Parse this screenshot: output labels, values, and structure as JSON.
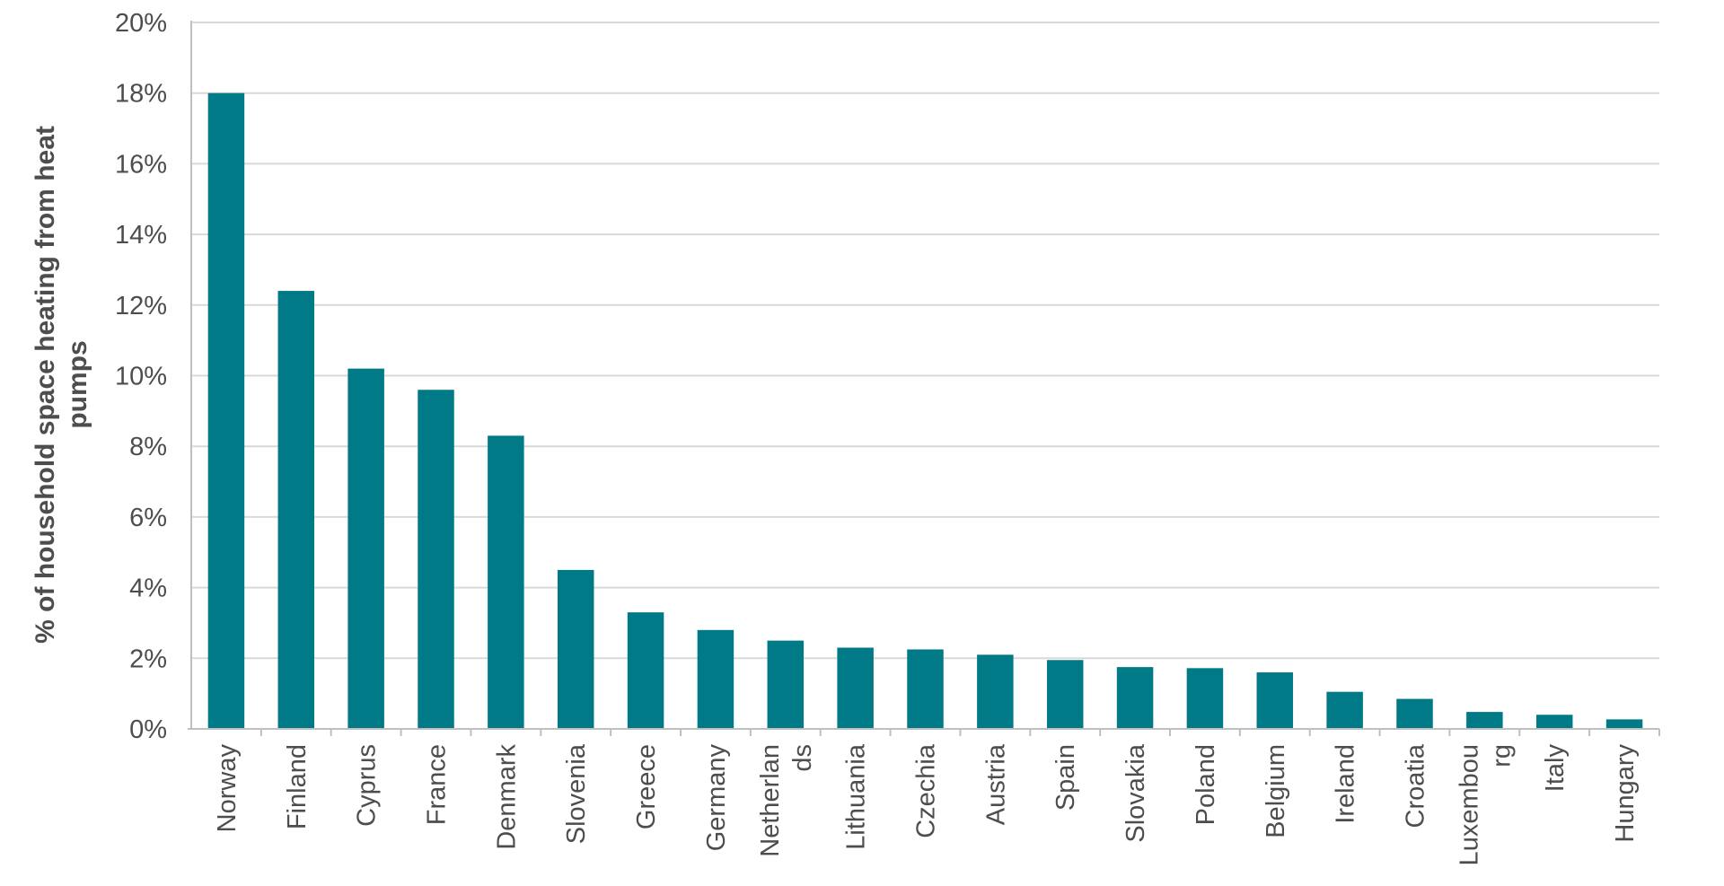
{
  "chart_data": {
    "type": "bar",
    "title": "",
    "xlabel": "",
    "ylabel": [
      "% of household space heating from  heat",
      "pumps"
    ],
    "ylim": [
      0,
      20
    ],
    "y_ticks": [
      "0%",
      "2%",
      "4%",
      "6%",
      "8%",
      "10%",
      "12%",
      "14%",
      "16%",
      "18%",
      "20%"
    ],
    "grid": true,
    "legend": "none",
    "bar_color": "#007A87",
    "categories": [
      [
        "Norway"
      ],
      [
        "Finland"
      ],
      [
        "Cyprus"
      ],
      [
        "France"
      ],
      [
        "Denmark"
      ],
      [
        "Slovenia"
      ],
      [
        "Greece"
      ],
      [
        "Germany"
      ],
      [
        "Netherlan",
        "ds"
      ],
      [
        "Lithuania"
      ],
      [
        "Czechia"
      ],
      [
        "Austria"
      ],
      [
        "Spain"
      ],
      [
        "Slovakia"
      ],
      [
        "Poland"
      ],
      [
        "Belgium"
      ],
      [
        "Ireland"
      ],
      [
        "Croatia"
      ],
      [
        "Luxembou",
        "rg"
      ],
      [
        "Italy"
      ],
      [
        "Hungary"
      ]
    ],
    "values": [
      18.0,
      12.4,
      10.2,
      9.6,
      8.3,
      4.5,
      3.3,
      2.8,
      2.5,
      2.3,
      2.25,
      2.1,
      1.95,
      1.75,
      1.72,
      1.6,
      1.05,
      0.85,
      0.48,
      0.4,
      0.27
    ]
  }
}
